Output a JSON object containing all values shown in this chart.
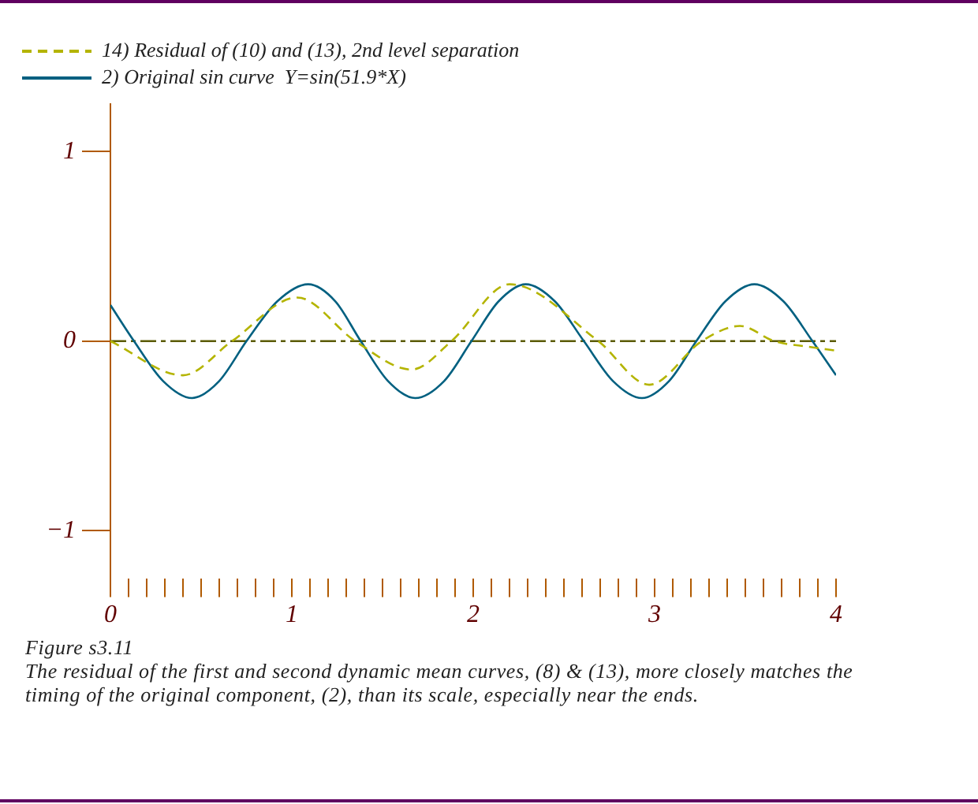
{
  "chart_data": {
    "type": "line",
    "legend": "top",
    "grid": false,
    "xlim": [
      0,
      4
    ],
    "ylim": [
      -1.25,
      1.25
    ],
    "xticks": [
      0,
      {
        "value": 0.1,
        "label": null
      },
      {
        "value": 0.2,
        "label": null
      },
      {
        "value": 0.3,
        "label": null
      },
      {
        "value": 0.4,
        "label": null
      },
      {
        "value": 0.5,
        "label": null
      },
      {
        "value": 0.6,
        "label": null
      },
      {
        "value": 0.7,
        "label": null
      },
      {
        "value": 0.8,
        "label": null
      },
      {
        "value": 0.9,
        "label": null
      },
      1,
      {
        "value": 1.1,
        "label": null
      },
      {
        "value": 1.2,
        "label": null
      },
      {
        "value": 1.3,
        "label": null
      },
      {
        "value": 1.4,
        "label": null
      },
      {
        "value": 1.5,
        "label": null
      },
      {
        "value": 1.6,
        "label": null
      },
      {
        "value": 1.7,
        "label": null
      },
      {
        "value": 1.8,
        "label": null
      },
      {
        "value": 1.9,
        "label": null
      },
      2,
      {
        "value": 2.1,
        "label": null
      },
      {
        "value": 2.2,
        "label": null
      },
      {
        "value": 2.3,
        "label": null
      },
      {
        "value": 2.4,
        "label": null
      },
      {
        "value": 2.5,
        "label": null
      },
      {
        "value": 2.6,
        "label": null
      },
      {
        "value": 2.7,
        "label": null
      },
      {
        "value": 2.8,
        "label": null
      },
      {
        "value": 2.9,
        "label": null
      },
      3,
      {
        "value": 3.1,
        "label": null
      },
      {
        "value": 3.2,
        "label": null
      },
      {
        "value": 3.3,
        "label": null
      },
      {
        "value": 3.4,
        "label": null
      },
      {
        "value": 3.5,
        "label": null
      },
      {
        "value": 3.6,
        "label": null
      },
      {
        "value": 3.7,
        "label": null
      },
      {
        "value": 3.8,
        "label": null
      },
      {
        "value": 3.9,
        "label": null
      },
      4
    ],
    "yticks": [
      {
        "value": -1,
        "label": "−1"
      },
      0,
      1
    ],
    "ref_lines": [
      {
        "axis": "y",
        "value": 0,
        "color": "#5a5a00",
        "line_style": "dashed"
      }
    ],
    "series": [
      {
        "name": "14) Residual of (10) and (13), 2nd level separation",
        "color": "#b4b400",
        "line_style": "dashed",
        "x": [
          0,
          0.4,
          0.67,
          1.03,
          1.35,
          1.66,
          1.88,
          2.2,
          2.69,
          2.97,
          3.26,
          3.47,
          3.66,
          3.85,
          4.0
        ],
        "values": [
          0,
          -0.18,
          0,
          0.23,
          0,
          -0.15,
          0,
          0.3,
          0,
          -0.23,
          0,
          0.08,
          0,
          -0.03,
          -0.05
        ]
      },
      {
        "name": "2) Original sin curve  Y=sin(51.9*X)",
        "color": "#006080",
        "line_style": "solid",
        "x": [
          0,
          0.13,
          0.29,
          0.45,
          0.6,
          0.75,
          0.92,
          1.09,
          1.24,
          1.38,
          1.53,
          1.68,
          1.84,
          1.99,
          2.14,
          2.29,
          2.45,
          2.61,
          2.77,
          2.93,
          3.08,
          3.23,
          3.39,
          3.55,
          3.71,
          3.87,
          4.0
        ],
        "values": [
          0.19,
          0,
          -0.21,
          -0.3,
          -0.21,
          0,
          0.21,
          0.3,
          0.21,
          0,
          -0.21,
          -0.3,
          -0.21,
          0,
          0.21,
          0.3,
          0.21,
          0,
          -0.21,
          -0.3,
          -0.21,
          0,
          0.21,
          0.3,
          0.21,
          0,
          -0.18
        ]
      }
    ],
    "annotations": [
      "Figure s3.11",
      "The residual of the first and second dynamic mean curves, (8) & (13), more closely matches the timing of the original component, (2), than its scale, especially near the ends."
    ]
  }
}
